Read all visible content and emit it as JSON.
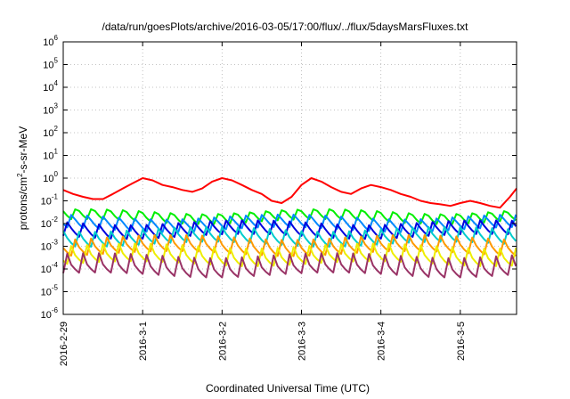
{
  "chart_data": {
    "type": "line",
    "title": "/data/run/goesPlots/archive/2016-03-05/17:00/flux/../flux/5daysMarsFluxes.txt",
    "xlabel": "Coordinated Universal Time (UTC)",
    "ylabel_parts": [
      "protons/cm",
      "2",
      "-s-sr-MeV"
    ],
    "yscale": "log",
    "ylim": [
      1e-06,
      1000000.0
    ],
    "y_ticks": [
      {
        "exp": "-6"
      },
      {
        "exp": "-5"
      },
      {
        "exp": "-4"
      },
      {
        "exp": "-3"
      },
      {
        "exp": "-2"
      },
      {
        "exp": "-1"
      },
      {
        "exp": "0"
      },
      {
        "exp": "1"
      },
      {
        "exp": "2"
      },
      {
        "exp": "3"
      },
      {
        "exp": "4"
      },
      {
        "exp": "5"
      },
      {
        "exp": "6"
      }
    ],
    "y_tick_base": "10",
    "xlim": [
      "2016-02-29 00:00",
      "2016-03-05 17:00"
    ],
    "x_ticks": [
      "2016-2-29",
      "2016-3-1",
      "2016-3-2",
      "2016-3-3",
      "2016-3-4",
      "2016-3-5"
    ],
    "grid": true,
    "series": [
      {
        "color": "#ff0000",
        "x": [
          "2016-02-29 00:00",
          "2016-02-29 03:00",
          "2016-02-29 06:00",
          "2016-02-29 09:00",
          "2016-02-29 12:00",
          "2016-02-29 15:00",
          "2016-02-29 18:00",
          "2016-02-29 21:00",
          "2016-03-01 00:00",
          "2016-03-01 03:00",
          "2016-03-01 06:00",
          "2016-03-01 09:00",
          "2016-03-01 12:00",
          "2016-03-01 15:00",
          "2016-03-01 18:00",
          "2016-03-01 21:00",
          "2016-03-02 00:00",
          "2016-03-02 03:00",
          "2016-03-02 06:00",
          "2016-03-02 09:00",
          "2016-03-02 12:00",
          "2016-03-02 15:00",
          "2016-03-02 18:00",
          "2016-03-02 21:00",
          "2016-03-03 00:00",
          "2016-03-03 03:00",
          "2016-03-03 06:00",
          "2016-03-03 09:00",
          "2016-03-03 12:00",
          "2016-03-03 15:00",
          "2016-03-03 18:00",
          "2016-03-03 21:00",
          "2016-03-04 00:00",
          "2016-03-04 03:00",
          "2016-03-04 06:00",
          "2016-03-04 09:00",
          "2016-03-04 12:00",
          "2016-03-04 15:00",
          "2016-03-04 18:00",
          "2016-03-04 21:00",
          "2016-03-05 00:00",
          "2016-03-05 03:00",
          "2016-03-05 06:00",
          "2016-03-05 09:00",
          "2016-03-05 12:00",
          "2016-03-05 15:00",
          "2016-03-05 17:00"
        ],
        "values": [
          0.3,
          0.2,
          0.15,
          0.12,
          0.12,
          0.2,
          0.35,
          0.6,
          1.0,
          0.8,
          0.5,
          0.4,
          0.3,
          0.25,
          0.35,
          0.7,
          1.0,
          0.8,
          0.5,
          0.3,
          0.2,
          0.1,
          0.08,
          0.15,
          0.5,
          1.0,
          0.7,
          0.4,
          0.25,
          0.2,
          0.35,
          0.5,
          0.4,
          0.3,
          0.2,
          0.15,
          0.1,
          0.08,
          0.07,
          0.06,
          0.08,
          0.1,
          0.08,
          0.06,
          0.05,
          0.15,
          0.35
        ]
      },
      {
        "color": "#00ee00",
        "base": 0.018,
        "amp": 1.9
      },
      {
        "color": "#0088ff",
        "base": 0.008,
        "amp": 2.5
      },
      {
        "color": "#0000dd",
        "base": 0.004,
        "amp": 2.8
      },
      {
        "color": "#00cccc",
        "base": 0.0018,
        "amp": 3.2
      },
      {
        "color": "#ff9900",
        "base": 0.0007,
        "amp": 3.6
      },
      {
        "color": "#eeee00",
        "base": 0.00025,
        "amp": 4.2
      },
      {
        "color": "#993366",
        "base": 8e-05,
        "amp": 5.0
      }
    ]
  }
}
